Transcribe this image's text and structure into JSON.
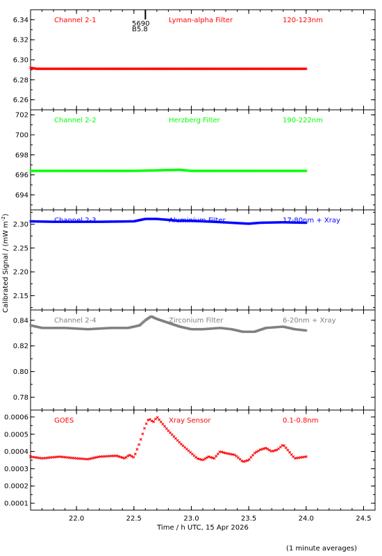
{
  "figure": {
    "ylabel": "Calibrated Signal / (mW m",
    "ylabel_exp": "-2",
    "ylabel_close": ")",
    "xlabel": "Time / h UTC, 15 Apr 2026",
    "footnote": "(1 minute averages)",
    "marker_label_1": "5690",
    "marker_label_2": "B5.8",
    "marker_x": 22.6
  },
  "chart_data": [
    {
      "type": "scatter",
      "channel": "Channel 2-1",
      "filter": "Lyman-alpha Filter",
      "band": "120-123nm",
      "color": "#ff0000",
      "xlim": [
        21.6,
        24.6
      ],
      "ylim": [
        6.25,
        6.35
      ],
      "yticks": [
        6.26,
        6.28,
        6.3,
        6.32,
        6.34
      ],
      "ytick_labels": [
        "6.26",
        "6.28",
        "6.30",
        "6.32",
        "6.34"
      ],
      "series": [
        {
          "points": [
            [
              21.6,
              6.292
            ],
            [
              21.65,
              6.291
            ],
            [
              21.75,
              6.291
            ],
            [
              22.0,
              6.291
            ],
            [
              22.5,
              6.291
            ],
            [
              23.0,
              6.291
            ],
            [
              23.5,
              6.291
            ],
            [
              24.0,
              6.291
            ]
          ]
        }
      ]
    },
    {
      "type": "scatter",
      "channel": "Channel 2-2",
      "filter": "Herzberg Filter",
      "band": "190-222nm",
      "color": "#00ff00",
      "xlim": [
        21.6,
        24.6
      ],
      "ylim": [
        692.5,
        702.5
      ],
      "yticks": [
        694,
        696,
        698,
        700,
        702
      ],
      "ytick_labels": [
        "694",
        "696",
        "698",
        "700",
        "702"
      ],
      "series": [
        {
          "points": [
            [
              21.6,
              696.4
            ],
            [
              22.0,
              696.4
            ],
            [
              22.5,
              696.4
            ],
            [
              22.9,
              696.5
            ],
            [
              23.0,
              696.4
            ],
            [
              23.5,
              696.4
            ],
            [
              24.0,
              696.4
            ]
          ]
        }
      ]
    },
    {
      "type": "scatter",
      "channel": "Channel 2-3",
      "filter": "Aluminium Filter",
      "band": "17-80nm + Xray",
      "color": "#0000ff",
      "xlim": [
        21.6,
        24.6
      ],
      "ylim": [
        2.12,
        2.33
      ],
      "yticks": [
        2.15,
        2.2,
        2.25,
        2.3
      ],
      "ytick_labels": [
        "2.15",
        "2.20",
        "2.25",
        "2.30"
      ],
      "series": [
        {
          "points": [
            [
              21.6,
              2.306
            ],
            [
              21.8,
              2.305
            ],
            [
              22.0,
              2.305
            ],
            [
              22.2,
              2.305
            ],
            [
              22.5,
              2.306
            ],
            [
              22.6,
              2.311
            ],
            [
              22.7,
              2.311
            ],
            [
              22.8,
              2.309
            ],
            [
              22.9,
              2.307
            ],
            [
              23.0,
              2.307
            ],
            [
              23.2,
              2.305
            ],
            [
              23.35,
              2.303
            ],
            [
              23.5,
              2.301
            ],
            [
              23.6,
              2.303
            ],
            [
              23.8,
              2.304
            ],
            [
              24.0,
              2.303
            ]
          ]
        }
      ]
    },
    {
      "type": "scatter",
      "channel": "Channel 2-4",
      "filter": "Zirconium Filter",
      "band": "6-20nm + Xray",
      "color": "#808080",
      "xlim": [
        21.6,
        24.6
      ],
      "ylim": [
        0.77,
        0.848
      ],
      "yticks": [
        0.78,
        0.8,
        0.82,
        0.84
      ],
      "ytick_labels": [
        "0.78",
        "0.80",
        "0.82",
        "0.84"
      ],
      "series": [
        {
          "points": [
            [
              21.6,
              0.836
            ],
            [
              21.7,
              0.834
            ],
            [
              21.9,
              0.834
            ],
            [
              22.1,
              0.833
            ],
            [
              22.3,
              0.834
            ],
            [
              22.45,
              0.834
            ],
            [
              22.55,
              0.836
            ],
            [
              22.6,
              0.84
            ],
            [
              22.65,
              0.843
            ],
            [
              22.7,
              0.841
            ],
            [
              22.8,
              0.838
            ],
            [
              22.9,
              0.835
            ],
            [
              23.0,
              0.833
            ],
            [
              23.1,
              0.833
            ],
            [
              23.25,
              0.834
            ],
            [
              23.35,
              0.833
            ],
            [
              23.45,
              0.831
            ],
            [
              23.55,
              0.831
            ],
            [
              23.65,
              0.834
            ],
            [
              23.8,
              0.835
            ],
            [
              23.9,
              0.833
            ],
            [
              24.0,
              0.832
            ]
          ]
        }
      ]
    },
    {
      "type": "scatter",
      "source": "GOES",
      "filter": "Xray Sensor",
      "band": "0.1-0.8nm",
      "color": "#ff0000",
      "xlim": [
        21.6,
        24.6
      ],
      "ylim": [
        6e-05,
        0.00064
      ],
      "yticks": [
        0.0001,
        0.0002,
        0.0003,
        0.0004,
        0.0005,
        0.0006
      ],
      "ytick_labels": [
        "0.0001",
        "0.0002",
        "0.0003",
        "0.0004",
        "0.0005",
        "0.0006"
      ],
      "series": [
        {
          "points": [
            [
              21.6,
              0.00037
            ],
            [
              21.7,
              0.00036
            ],
            [
              21.85,
              0.00037
            ],
            [
              22.0,
              0.00036
            ],
            [
              22.1,
              0.000355
            ],
            [
              22.2,
              0.00037
            ],
            [
              22.35,
              0.000375
            ],
            [
              22.42,
              0.00036
            ],
            [
              22.46,
              0.00038
            ],
            [
              22.5,
              0.000365
            ],
            [
              22.55,
              0.00045
            ],
            [
              22.6,
              0.00055
            ],
            [
              22.63,
              0.00059
            ],
            [
              22.67,
              0.00057
            ],
            [
              22.7,
              0.0006
            ],
            [
              22.75,
              0.00056
            ],
            [
              22.8,
              0.00052
            ],
            [
              22.9,
              0.00045
            ],
            [
              23.0,
              0.00039
            ],
            [
              23.05,
              0.00036
            ],
            [
              23.1,
              0.00035
            ],
            [
              23.15,
              0.00037
            ],
            [
              23.2,
              0.00036
            ],
            [
              23.25,
              0.0004
            ],
            [
              23.3,
              0.00039
            ],
            [
              23.38,
              0.00038
            ],
            [
              23.45,
              0.00034
            ],
            [
              23.5,
              0.00035
            ],
            [
              23.55,
              0.00039
            ],
            [
              23.6,
              0.00041
            ],
            [
              23.65,
              0.00042
            ],
            [
              23.7,
              0.0004
            ],
            [
              23.75,
              0.00041
            ],
            [
              23.8,
              0.00044
            ],
            [
              23.85,
              0.0004
            ],
            [
              23.9,
              0.00036
            ],
            [
              24.0,
              0.00037
            ]
          ]
        }
      ]
    }
  ],
  "xaxis": {
    "ticks": [
      22.0,
      22.5,
      23.0,
      23.5,
      24.0,
      24.5
    ],
    "tick_labels": [
      "22.0",
      "22.5",
      "23.0",
      "23.5",
      "24.0",
      "24.5"
    ]
  }
}
